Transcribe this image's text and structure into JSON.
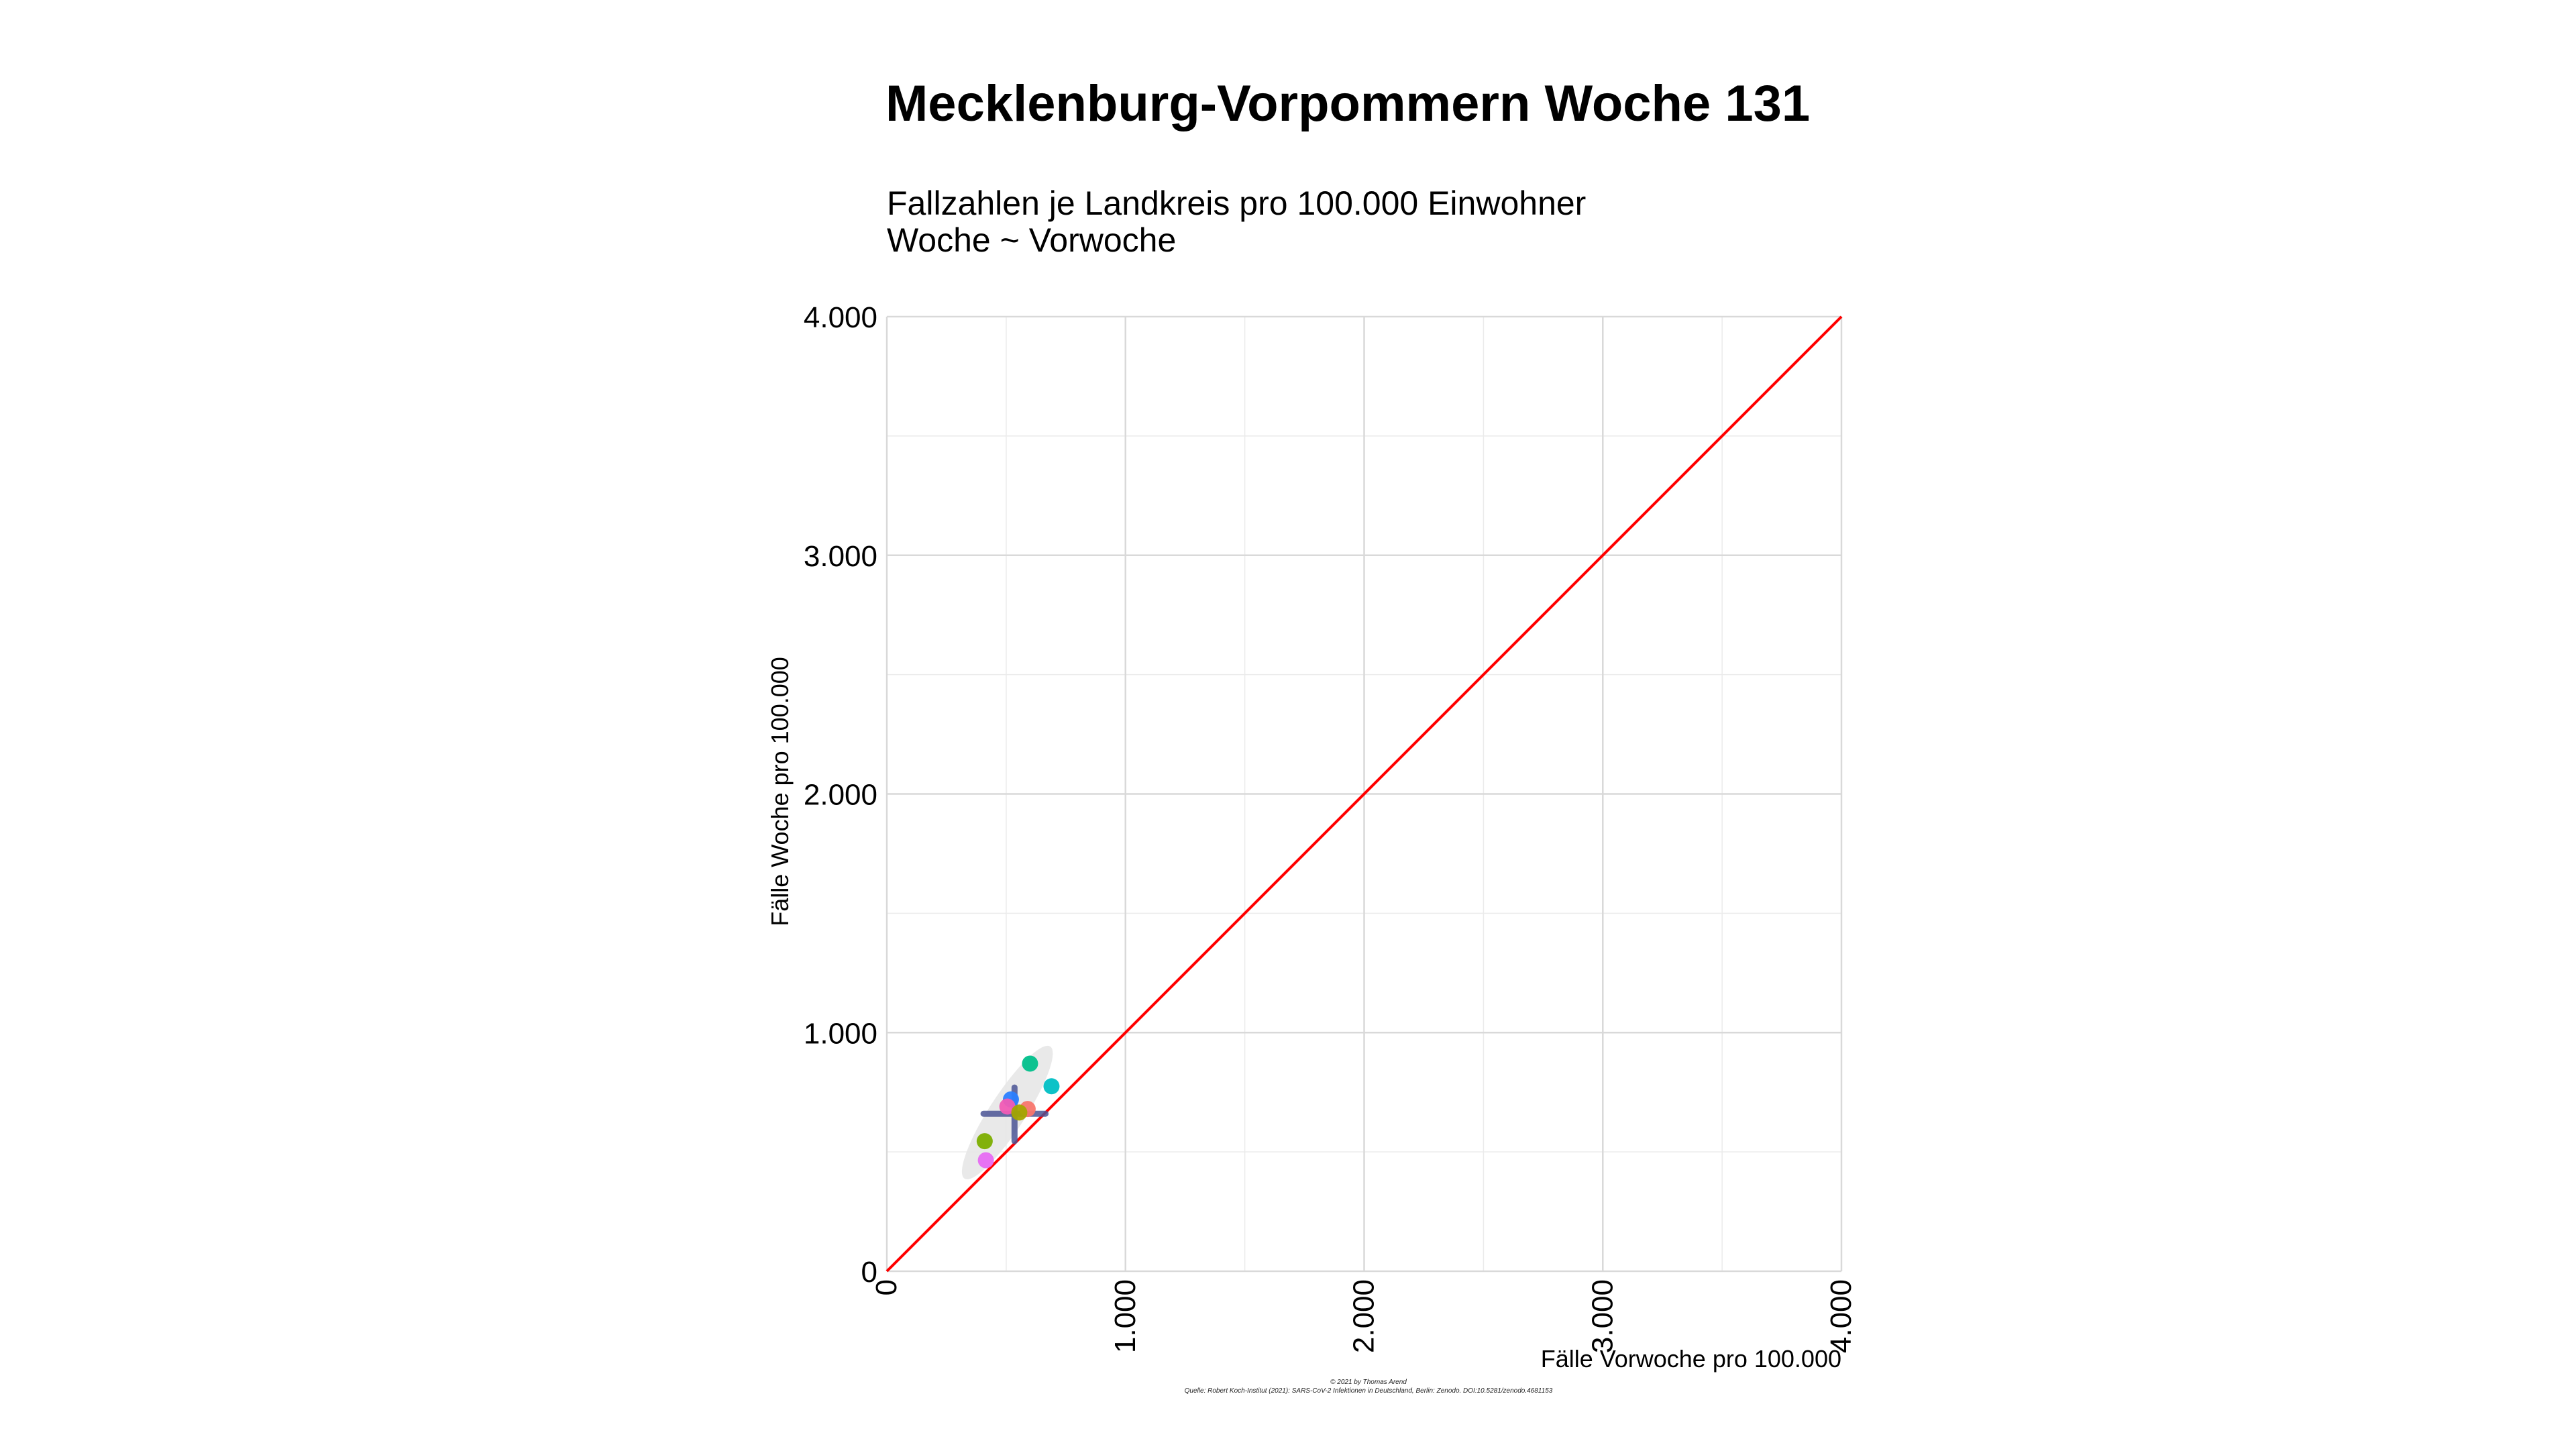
{
  "chart_data": {
    "type": "scatter",
    "title": "Mecklenburg-Vorpommern Woche 131",
    "subtitle_lines": [
      "Fallzahlen je Landkreis pro 100.000 Einwohner",
      "Woche ~ Vorwoche"
    ],
    "xlabel": "Fälle Vorwoche pro 100.000",
    "ylabel": "Fälle Woche pro 100.000",
    "xlim": [
      0,
      4000
    ],
    "ylim": [
      0,
      4000
    ],
    "x_ticks": [
      0,
      1000,
      2000,
      3000,
      4000
    ],
    "x_tick_labels": [
      "0",
      "1.000",
      "2.000",
      "3.000",
      "4.000"
    ],
    "y_ticks": [
      0,
      1000,
      2000,
      3000,
      4000
    ],
    "y_tick_labels": [
      "0",
      "1.000",
      "2.000",
      "3.000",
      "4.000"
    ],
    "minor_ticks": [
      500,
      1500,
      2500,
      3500
    ],
    "grid": true,
    "reference_line": {
      "type": "identity",
      "from": [
        0,
        0
      ],
      "to": [
        4000,
        4000
      ],
      "color": "#ff0000"
    },
    "confidence_ellipse": {
      "center": [
        505,
        665
      ],
      "semi_axis_major": 330,
      "semi_axis_minor": 75,
      "angle_deg": 57,
      "color": "#e5e5e5"
    },
    "mean_cross": {
      "center": [
        535,
        660
      ],
      "x_range": [
        405,
        665
      ],
      "y_range": [
        545,
        770
      ],
      "color": "#4a5494"
    },
    "points": [
      {
        "x": 600,
        "y": 870,
        "color": "#00c08b"
      },
      {
        "x": 690,
        "y": 775,
        "color": "#00bfc4"
      },
      {
        "x": 520,
        "y": 720,
        "color": "#2b7fff"
      },
      {
        "x": 505,
        "y": 690,
        "color": "#f15bb5"
      },
      {
        "x": 590,
        "y": 680,
        "color": "#f8766d"
      },
      {
        "x": 555,
        "y": 665,
        "color": "#a3a500"
      },
      {
        "x": 410,
        "y": 545,
        "color": "#7cae00"
      },
      {
        "x": 415,
        "y": 465,
        "color": "#e76bf3"
      }
    ],
    "caption_lines": [
      "© 2021 by Thomas Arend",
      "Quelle: Robert Koch-Institut (2021): SARS-CoV-2 Infektionen in Deutschland, Berlin: Zenodo. DOI:10.5281/zenodo.4681153"
    ]
  }
}
